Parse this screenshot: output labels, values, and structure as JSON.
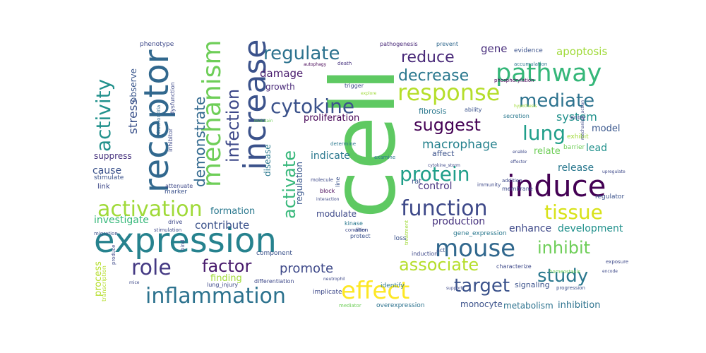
{
  "words": [
    {
      "text": "cell",
      "color": "#5ec962"
    },
    {
      "text": "expression",
      "color": "#26828e"
    },
    {
      "text": "induce",
      "color": "#440154"
    },
    {
      "text": "receptor",
      "color": "#31688e"
    },
    {
      "text": "increase",
      "color": "#3b528b"
    },
    {
      "text": "pathway",
      "color": "#35b779"
    },
    {
      "text": "response",
      "color": "#b5de2b"
    },
    {
      "text": "mechanism",
      "color": "#6ece58"
    },
    {
      "text": "activation",
      "color": "#a0da39"
    },
    {
      "text": "function",
      "color": "#3e4989"
    },
    {
      "text": "mouse",
      "color": "#31688e"
    },
    {
      "text": "effect",
      "color": "#fde725"
    },
    {
      "text": "inflammation",
      "color": "#2c728e"
    },
    {
      "text": "cytokine",
      "color": "#3b528b"
    },
    {
      "text": "role",
      "color": "#443983"
    },
    {
      "text": "protein",
      "color": "#1f9e89"
    },
    {
      "text": "activity",
      "color": "#21918c"
    },
    {
      "text": "tissue",
      "color": "#d8e219"
    },
    {
      "text": "lung",
      "color": "#1f9e89"
    },
    {
      "text": "study",
      "color": "#2a788e"
    },
    {
      "text": "regulate",
      "color": "#2c728e"
    },
    {
      "text": "suggest",
      "color": "#440154"
    },
    {
      "text": "mediate",
      "color": "#2c728e"
    },
    {
      "text": "infection",
      "color": "#3e4989"
    },
    {
      "text": "target",
      "color": "#3b528b"
    },
    {
      "text": "activate",
      "color": "#35b779"
    },
    {
      "text": "associate",
      "color": "#b5de2b"
    },
    {
      "text": "inhibit",
      "color": "#6ece58"
    },
    {
      "text": "factor",
      "color": "#481a6c"
    },
    {
      "text": "decrease",
      "color": "#2a788e"
    },
    {
      "text": "reduce",
      "color": "#482878"
    },
    {
      "text": "demonstrate",
      "color": "#31688e"
    },
    {
      "text": "promote",
      "color": "#3e4989"
    },
    {
      "text": "macrophage",
      "color": "#26828e"
    },
    {
      "text": "stress",
      "color": "#3b528b"
    },
    {
      "text": "system",
      "color": "#21918c"
    },
    {
      "text": "apoptosis",
      "color": "#a0da39"
    },
    {
      "text": "gene",
      "color": "#472d7b"
    },
    {
      "text": "damage",
      "color": "#481a6c"
    },
    {
      "text": "contribute",
      "color": "#3b528b"
    },
    {
      "text": "investigate",
      "color": "#35b779"
    },
    {
      "text": "control",
      "color": "#46327e"
    },
    {
      "text": "production",
      "color": "#46327e"
    },
    {
      "text": "development",
      "color": "#21918c"
    },
    {
      "text": "enhance",
      "color": "#3e4989"
    },
    {
      "text": "release",
      "color": "#2a788e"
    },
    {
      "text": "lead",
      "color": "#21918c"
    },
    {
      "text": "model",
      "color": "#39568c"
    },
    {
      "text": "relate",
      "color": "#6ece58"
    },
    {
      "text": "indicate",
      "color": "#2a788e"
    },
    {
      "text": "cause",
      "color": "#3b528b"
    },
    {
      "text": "suppress",
      "color": "#46327e"
    },
    {
      "text": "formation",
      "color": "#2a788e"
    },
    {
      "text": "modulate",
      "color": "#3e4989"
    },
    {
      "text": "regulation",
      "color": "#39568c"
    },
    {
      "text": "disease",
      "color": "#2a788e"
    },
    {
      "text": "process",
      "color": "#b5de2b"
    },
    {
      "text": "finding",
      "color": "#a0da39"
    },
    {
      "text": "monocyte",
      "color": "#3b528b"
    },
    {
      "text": "metabolism",
      "color": "#2c728e"
    },
    {
      "text": "inhibition",
      "color": "#2c728e"
    },
    {
      "text": "observe",
      "color": "#39568c"
    },
    {
      "text": "proliferation",
      "color": "#440154"
    },
    {
      "text": "growth",
      "color": "#482878"
    },
    {
      "text": "fibrosis",
      "color": "#2a788e"
    },
    {
      "text": "affect",
      "color": "#3b528b"
    },
    {
      "text": "evidence",
      "color": "#3b528b"
    },
    {
      "text": "rat",
      "color": "#3b528b"
    },
    {
      "text": "phenotype",
      "color": "#3e4989"
    },
    {
      "text": "pathogenesis",
      "color": "#482878"
    },
    {
      "text": "prevent",
      "color": "#31688e"
    },
    {
      "text": "autophagy",
      "color": "#440154"
    },
    {
      "text": "death",
      "color": "#46327e"
    },
    {
      "text": "phosphorylation",
      "color": "#440154"
    },
    {
      "text": "accumulation",
      "color": "#2a788e"
    },
    {
      "text": "trigger",
      "color": "#3e4989"
    },
    {
      "text": "explore",
      "color": "#a0da39"
    },
    {
      "text": "dysfunction",
      "color": "#3e4989"
    },
    {
      "text": "mitochondria",
      "color": "#31688e"
    },
    {
      "text": "maintain",
      "color": "#6ece58"
    },
    {
      "text": "mediator",
      "color": "#6ece58"
    },
    {
      "text": "overexpression",
      "color": "#2c728e"
    },
    {
      "text": "lung_injury",
      "color": "#3e4989"
    },
    {
      "text": "gene_expression",
      "color": "#2a788e"
    },
    {
      "text": "signaling",
      "color": "#3b528b"
    },
    {
      "text": "identify",
      "color": "#2a788e"
    },
    {
      "text": "implicate",
      "color": "#3e4989"
    },
    {
      "text": "differentiation",
      "color": "#3e4989"
    },
    {
      "text": "component",
      "color": "#3b528b"
    },
    {
      "text": "induction",
      "color": "#3e4989"
    },
    {
      "text": "neutrophil",
      "color": "#3e4989"
    },
    {
      "text": "protect",
      "color": "#3b528b"
    },
    {
      "text": "alter",
      "color": "#3b528b"
    },
    {
      "text": "act",
      "color": "#3b528b"
    },
    {
      "text": "link",
      "color": "#3e4989"
    },
    {
      "text": "stimulate",
      "color": "#3b528b"
    },
    {
      "text": "marker",
      "color": "#3b528b"
    },
    {
      "text": "attenuate",
      "color": "#3e4989"
    },
    {
      "text": "block",
      "color": "#440154"
    },
    {
      "text": "interaction",
      "color": "#3e4989"
    },
    {
      "text": "immunity",
      "color": "#3e4989"
    },
    {
      "text": "secretion",
      "color": "#2a788e"
    },
    {
      "text": "entry",
      "color": "#3e4989"
    },
    {
      "text": "ability",
      "color": "#3b528b"
    },
    {
      "text": "membrane",
      "color": "#3e4989"
    },
    {
      "text": "barrier",
      "color": "#6ece58"
    },
    {
      "text": "regulator",
      "color": "#3b528b"
    },
    {
      "text": "progression",
      "color": "#3b528b"
    },
    {
      "text": "support",
      "color": "#3e4989"
    },
    {
      "text": "characterize",
      "color": "#3e4989"
    },
    {
      "text": "homeostasis",
      "color": "#6ece58"
    },
    {
      "text": "exposure",
      "color": "#3e4989"
    },
    {
      "text": "hypothesis",
      "color": "#a0da39"
    },
    {
      "text": "exhibit",
      "color": "#a0da39"
    },
    {
      "text": "treatment",
      "color": "#a0da39"
    },
    {
      "text": "examine",
      "color": "#2a788e"
    },
    {
      "text": "molecule",
      "color": "#3e4989"
    },
    {
      "text": "determine",
      "color": "#2a788e"
    },
    {
      "text": "kinase",
      "color": "#2a788e"
    },
    {
      "text": "condition",
      "color": "#3e4989"
    },
    {
      "text": "loss",
      "color": "#3b528b"
    },
    {
      "text": "line",
      "color": "#3b528b"
    },
    {
      "text": "cytokine_storm",
      "color": "#3e4989"
    },
    {
      "text": "addition",
      "color": "#3e4989"
    },
    {
      "text": "upregulate",
      "color": "#3e4989"
    },
    {
      "text": "inhibitor",
      "color": "#3e4989"
    },
    {
      "text": "transcription",
      "color": "#b5de2b"
    },
    {
      "text": "produce",
      "color": "#3e4989"
    },
    {
      "text": "migration",
      "color": "#3b528b"
    },
    {
      "text": "stimulation",
      "color": "#3e4989"
    },
    {
      "text": "drive",
      "color": "#3e4989"
    },
    {
      "text": "bind",
      "color": "#3e4989"
    },
    {
      "text": "mice",
      "color": "#3e4989"
    },
    {
      "text": "encode",
      "color": "#3e4989"
    },
    {
      "text": "effector",
      "color": "#3e4989"
    },
    {
      "text": "enable",
      "color": "#3e4989"
    },
    {
      "text": "mechanism_action",
      "color": "#3e4989"
    }
  ]
}
